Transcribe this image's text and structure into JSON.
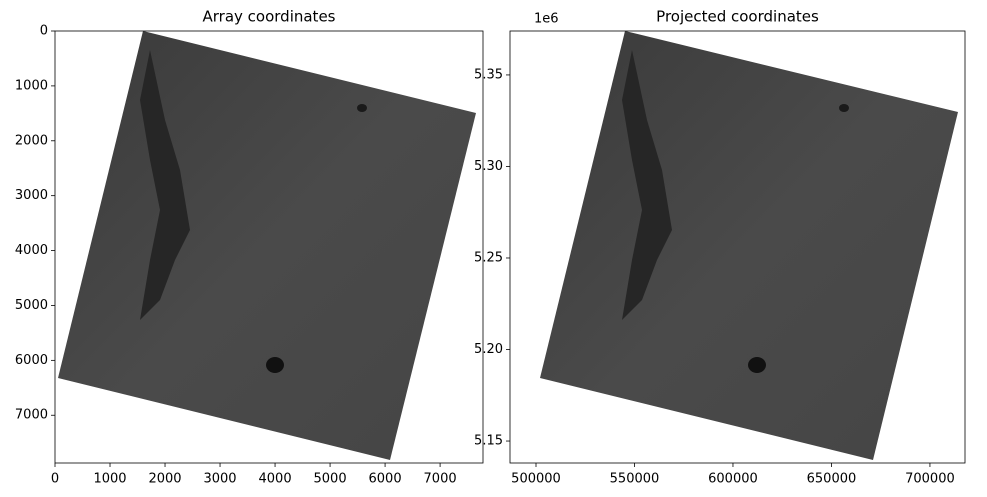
{
  "chart_data": [
    {
      "type": "image",
      "title": "Array coordinates",
      "xlim": [
        0,
        7780
      ],
      "xticks": [
        0,
        1000,
        2000,
        3000,
        4000,
        5000,
        6000,
        7000
      ],
      "ylim": [
        7870,
        0
      ],
      "yticks": [
        0,
        1000,
        2000,
        3000,
        4000,
        5000,
        6000,
        7000
      ]
    },
    {
      "type": "image",
      "title": "Projected coordinates",
      "xlim": [
        486800,
        717800
      ],
      "xticks": [
        500000,
        550000,
        600000,
        650000,
        700000
      ],
      "ylim": [
        5.138,
        5.374
      ],
      "yticks": [
        {
          "value": 5.15,
          "label": "5.15"
        },
        {
          "value": 5.2,
          "label": "5.20"
        },
        {
          "value": 5.25,
          "label": "5.25"
        },
        {
          "value": 5.3,
          "label": "5.30"
        },
        {
          "value": 5.35,
          "label": "5.35"
        }
      ],
      "y_offset_label": "1e6"
    }
  ]
}
